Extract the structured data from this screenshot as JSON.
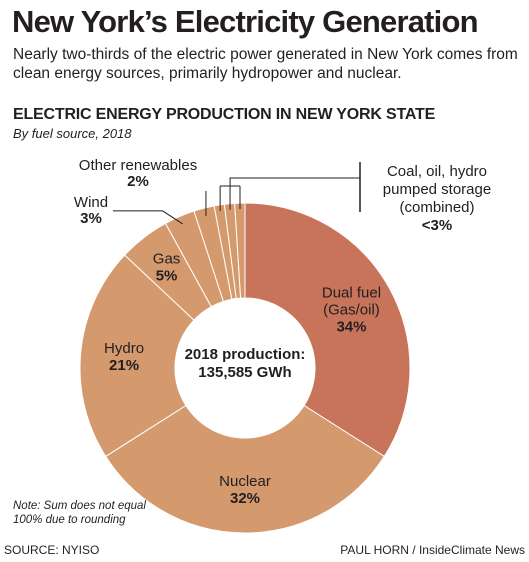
{
  "header": {
    "title": "New York’s Electricity Generation",
    "subtitle": "Nearly two-thirds of the electric power generated in New York comes from clean energy sources, primarily hydropower and nuclear."
  },
  "chart_data": {
    "type": "pie",
    "variant": "donut",
    "title": "ELECTRIC ENERGY PRODUCTION IN NEW YORK STATE",
    "subtitle": "By fuel source, 2018",
    "center_label": {
      "line1": "2018 production:",
      "line2": "135,585 GWh"
    },
    "slices": [
      {
        "label_lines": [
          "Dual fuel",
          "(Gas/oil)"
        ],
        "value_label": "34%",
        "value": 34,
        "color": "#c8745a",
        "label_position": "inside"
      },
      {
        "label_lines": [
          "Nuclear"
        ],
        "value_label": "32%",
        "value": 32,
        "color": "#d49a6e",
        "label_position": "inside"
      },
      {
        "label_lines": [
          "Hydro"
        ],
        "value_label": "21%",
        "value": 21,
        "color": "#d49a6e",
        "label_position": "inside"
      },
      {
        "label_lines": [
          "Gas"
        ],
        "value_label": "5%",
        "value": 5,
        "color": "#d49a6e",
        "label_position": "inside"
      },
      {
        "label_lines": [
          "Wind"
        ],
        "value_label": "3%",
        "value": 3,
        "color": "#d49a6e",
        "label_position": "outside"
      },
      {
        "label_lines": [
          "Other renewables"
        ],
        "value_label": "2%",
        "value": 2,
        "color": "#d49a6e",
        "label_position": "outside"
      },
      {
        "label_lines": [
          "Coal, oil, hydro",
          "pumped storage",
          "(combined)"
        ],
        "value_label": "<3%",
        "value": 3,
        "color": "#d49a6e",
        "label_position": "outside-bracket",
        "group_of": 3
      }
    ],
    "colors": {
      "dual_fuel": "#c8745a",
      "other_fuels": "#d49a6e",
      "separator": "#ffffff",
      "leader": "#231f20"
    }
  },
  "footer": {
    "note": "Note: Sum does not equal 100% due to rounding",
    "source": "SOURCE: NYISO",
    "credit": "PAUL HORN / InsideClimate News"
  }
}
